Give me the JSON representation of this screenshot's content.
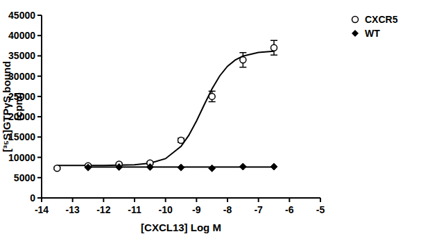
{
  "chart_data": {
    "type": "scatter",
    "x_label": "[CXCL13] Log M",
    "y_label": [
      "[³⁵S]GTPγS bound",
      "(cpm)"
    ],
    "xlim": [
      -14,
      -5
    ],
    "xticks": [
      -14,
      -13,
      -12,
      -11,
      -10,
      -9,
      -8,
      -7,
      -6,
      -5
    ],
    "ylim": [
      0,
      45000
    ],
    "yticks": [
      0,
      5000,
      10000,
      15000,
      20000,
      25000,
      30000,
      35000,
      40000,
      45000
    ],
    "grid": false,
    "legend": "upper right",
    "series": [
      {
        "name": "CXCR5",
        "color": "#000000",
        "marker": "circle",
        "x": [
          -13.5,
          -12.5,
          -11.5,
          -10.5,
          -9.5,
          -8.5,
          -7.5,
          -6.5
        ],
        "values": [
          7300,
          7900,
          8300,
          8600,
          14200,
          25000,
          34000,
          37000
        ],
        "errors": [
          300,
          300,
          300,
          300,
          500,
          1300,
          1800,
          1800
        ],
        "fit": {
          "x": [
            -13.5,
            -13,
            -12,
            -11,
            -10.5,
            -10,
            -9.5,
            -9.25,
            -9,
            -8.75,
            -8.5,
            -8.25,
            -8,
            -7.75,
            -7.5,
            -7,
            -6.5
          ],
          "values": [
            8001,
            8002,
            8018,
            8177,
            8554,
            9680,
            12709,
            15412,
            18948,
            22965,
            26854,
            30076,
            32434,
            33984,
            34950,
            35860,
            36159
          ]
        }
      },
      {
        "name": "WT",
        "color": "#000000",
        "marker": "diamond",
        "x": [
          -12.5,
          -11.5,
          -10.5,
          -9.5,
          -8.5,
          -7.5,
          -6.5
        ],
        "values": [
          7500,
          7600,
          7600,
          7500,
          7300,
          7700,
          7700
        ],
        "fit": {
          "x": [
            -12.5,
            -6.5
          ],
          "values": [
            7600,
            7600
          ]
        }
      }
    ]
  }
}
